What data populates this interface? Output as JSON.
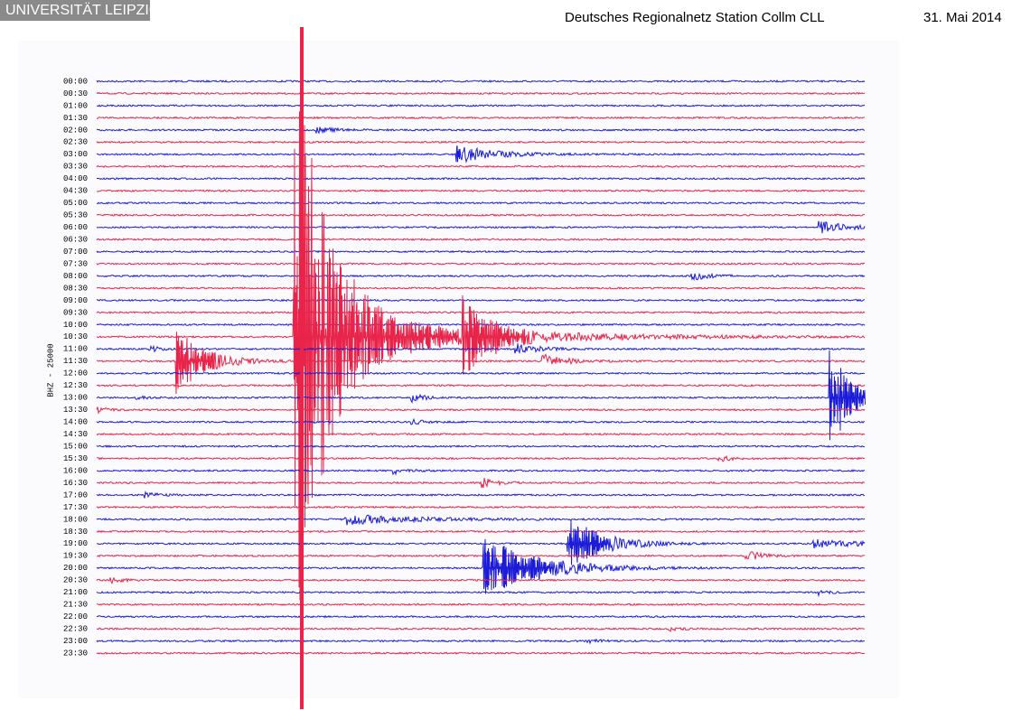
{
  "header": {
    "logo": "UNIVERSITÄT LEIPZIG",
    "title": "Deutsches Regionalnetz Station Collm CLL",
    "date": "31. Mai 2014"
  },
  "axis": {
    "channel": "BHZ - 25000",
    "times": [
      "00:00",
      "00:30",
      "01:00",
      "01:30",
      "02:00",
      "02:30",
      "03:00",
      "03:30",
      "04:00",
      "04:30",
      "05:00",
      "05:30",
      "06:00",
      "06:30",
      "07:00",
      "07:30",
      "08:00",
      "08:30",
      "09:00",
      "09:30",
      "10:00",
      "10:30",
      "11:00",
      "11:30",
      "12:00",
      "12:30",
      "13:00",
      "13:30",
      "14:00",
      "14:30",
      "15:00",
      "15:30",
      "16:00",
      "16:30",
      "17:00",
      "17:30",
      "18:00",
      "18:30",
      "19:00",
      "19:30",
      "20:00",
      "20:30",
      "21:00",
      "21:30",
      "22:00",
      "22:30",
      "23:00",
      "23:30"
    ]
  }
}
